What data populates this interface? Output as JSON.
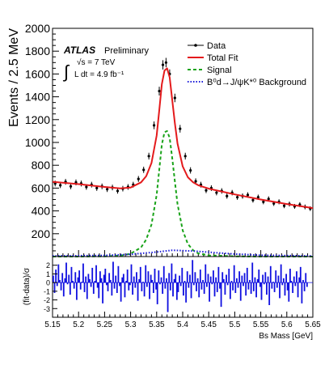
{
  "chart_data": [
    {
      "type": "scatter",
      "role": "main",
      "ylabel": "Events / 2.5 MeV",
      "xlim": [
        5.15,
        5.65
      ],
      "ylim": [
        0,
        2000
      ],
      "yticks": [
        "200",
        "400",
        "600",
        "800",
        "1000",
        "1200",
        "1400",
        "1600",
        "1800",
        "2000"
      ],
      "atlas_label": "ATLAS",
      "preliminary_label": "Preliminary",
      "integral_sign": "∫",
      "energy_label": "√s = 7 TeV",
      "lumi_label": "L dt = 4.9 fb⁻¹",
      "legend_position": "top-right",
      "legend": [
        "Data",
        "Total Fit",
        "Signal",
        "B⁰d→J/ψK*⁰ Background"
      ],
      "series": [
        {
          "name": "Data",
          "style": "markers-with-errors",
          "color": "#000000",
          "x": [
            5.155,
            5.165,
            5.175,
            5.185,
            5.195,
            5.205,
            5.215,
            5.225,
            5.235,
            5.245,
            5.255,
            5.265,
            5.275,
            5.285,
            5.295,
            5.305,
            5.315,
            5.325,
            5.335,
            5.345,
            5.355,
            5.362,
            5.368,
            5.375,
            5.385,
            5.395,
            5.405,
            5.415,
            5.425,
            5.435,
            5.445,
            5.455,
            5.465,
            5.475,
            5.485,
            5.495,
            5.505,
            5.515,
            5.525,
            5.535,
            5.545,
            5.555,
            5.565,
            5.575,
            5.585,
            5.595,
            5.605,
            5.615,
            5.625,
            5.635,
            5.645
          ],
          "y": [
            640,
            625,
            655,
            615,
            650,
            640,
            610,
            630,
            600,
            615,
            590,
            605,
            575,
            595,
            610,
            630,
            680,
            760,
            880,
            1150,
            1450,
            1680,
            1700,
            1600,
            1390,
            1120,
            880,
            755,
            660,
            630,
            580,
            600,
            560,
            575,
            530,
            560,
            520,
            530,
            540,
            495,
            520,
            480,
            505,
            465,
            480,
            445,
            460,
            440,
            455,
            435,
            420
          ]
        },
        {
          "name": "Total Fit",
          "style": "line",
          "color": "#e41a1c",
          "x": [
            5.15,
            5.2,
            5.25,
            5.28,
            5.3,
            5.32,
            5.33,
            5.34,
            5.35,
            5.355,
            5.36,
            5.365,
            5.37,
            5.375,
            5.38,
            5.385,
            5.39,
            5.4,
            5.41,
            5.42,
            5.43,
            5.45,
            5.5,
            5.55,
            5.6,
            5.65
          ],
          "y": [
            655,
            635,
            610,
            598,
            605,
            650,
            705,
            820,
            1060,
            1280,
            1510,
            1630,
            1650,
            1570,
            1370,
            1170,
            990,
            790,
            695,
            650,
            625,
            595,
            545,
            500,
            460,
            425
          ]
        },
        {
          "name": "Signal",
          "style": "dashed",
          "color": "#19a319",
          "x": [
            5.15,
            5.2,
            5.25,
            5.28,
            5.3,
            5.32,
            5.33,
            5.34,
            5.35,
            5.355,
            5.36,
            5.365,
            5.37,
            5.375,
            5.38,
            5.385,
            5.39,
            5.4,
            5.41,
            5.42,
            5.43,
            5.45,
            5.5,
            5.55,
            5.6,
            5.65
          ],
          "y": [
            0,
            0,
            2,
            8,
            25,
            80,
            150,
            280,
            540,
            760,
            980,
            1090,
            1100,
            1040,
            860,
            660,
            460,
            230,
            110,
            55,
            28,
            10,
            2,
            0,
            0,
            0
          ]
        },
        {
          "name": "B⁰d→J/ψK*⁰ Background",
          "style": "dotted",
          "color": "#1a1ad9",
          "x": [
            5.15,
            5.25,
            5.3,
            5.35,
            5.38,
            5.42,
            5.46,
            5.5,
            5.55,
            5.65
          ],
          "y": [
            5,
            10,
            20,
            40,
            55,
            48,
            35,
            22,
            12,
            5
          ]
        }
      ]
    },
    {
      "type": "bar",
      "role": "residuals",
      "ylabel": "(fit-data)/σ",
      "xlabel": "Bs Mass [GeV]",
      "xlim": [
        5.15,
        5.65
      ],
      "ylim": [
        -4,
        3
      ],
      "xticks": [
        "5.15",
        "5.2",
        "5.25",
        "5.3",
        "5.35",
        "5.4",
        "5.45",
        "5.5",
        "5.55",
        "5.6",
        "5.65"
      ],
      "yticks": [
        "-3",
        "-2",
        "-1",
        "0",
        "1",
        "2"
      ],
      "color": "#1010e0",
      "x_start": 5.15,
      "bin_width": 0.0025,
      "values": [
        0.8,
        -1.2,
        1.5,
        -0.4,
        2.1,
        0.3,
        -0.9,
        1.1,
        -1.6,
        0.5,
        2.3,
        -0.2,
        0.9,
        -1.4,
        1.8,
        0.2,
        -0.7,
        1.2,
        -2.0,
        0.6,
        1.4,
        -0.8,
        0.1,
        2.2,
        -1.1,
        0.7,
        -1.9,
        1.0,
        0.4,
        -0.5,
        1.7,
        -1.3,
        0.2,
        2.0,
        -0.6,
        -1.8,
        1.3,
        0.5,
        -2.4,
        0.9,
        1.6,
        -0.3,
        -1.0,
        1.1,
        0.3,
        -1.5,
        2.4,
        -0.7,
        0.8,
        -1.2,
        1.9,
        -0.4,
        -2.2,
        0.6,
        1.0,
        -1.7,
        0.2,
        1.5,
        -0.9,
        -0.3,
        2.1,
        -1.4,
        0.7,
        -0.6,
        1.2,
        -2.1,
        0.4,
        1.8,
        -1.0,
        0.1,
        -1.6,
        2.0,
        -0.5,
        1.3,
        -1.9,
        0.9,
        0.3,
        -1.2,
        1.6,
        -0.8,
        -2.5,
        1.4,
        -0.2,
        0.6,
        -1.3,
        1.9,
        -0.7,
        0.5,
        -3.4,
        1.1,
        -0.9,
        2.2,
        -1.6,
        0.4,
        1.0,
        -2.0,
        -1.1,
        0.8,
        -0.4,
        1.7,
        -1.5,
        0.2,
        -2.3,
        1.3,
        -0.6,
        0.9,
        -1.8,
        2.6,
        -0.3,
        1.2,
        -1.0,
        0.5,
        -1.7,
        1.5,
        -0.8,
        0.3,
        -1.3,
        2.1,
        -0.5,
        1.0,
        -2.2,
        0.7,
        -0.2,
        1.4,
        -1.6,
        0.6,
        -1.1,
        1.8,
        -0.7,
        -2.8,
        1.2,
        0.4,
        -1.4,
        0.9,
        -0.3,
        1.6,
        -1.9,
        0.2,
        -0.9,
        2.0,
        -1.2,
        0.5,
        -0.6,
        1.3,
        -2.1,
        0.8,
        -0.4,
        1.1,
        -1.5,
        1.7,
        -0.8,
        0.3,
        -1.3,
        2.3,
        -1.0,
        0.6,
        -1.7,
        0.4,
        1.5,
        -0.5,
        -2.0,
        0.9,
        -0.2,
        1.2,
        -1.4,
        0.7,
        -2.6,
        1.9,
        -0.7,
        0.1,
        -1.1,
        1.4,
        -0.6,
        0.8,
        -1.8,
        2.1,
        -0.3,
        0.5,
        -1.5,
        1.0,
        -0.9,
        -2.2,
        1.6,
        0.2,
        -1.2,
        0.7,
        -0.4,
        1.3,
        -1.7,
        0.6,
        1.8,
        -2.4,
        0.3,
        -1.0,
        1.1,
        -0.5
      ]
    }
  ]
}
